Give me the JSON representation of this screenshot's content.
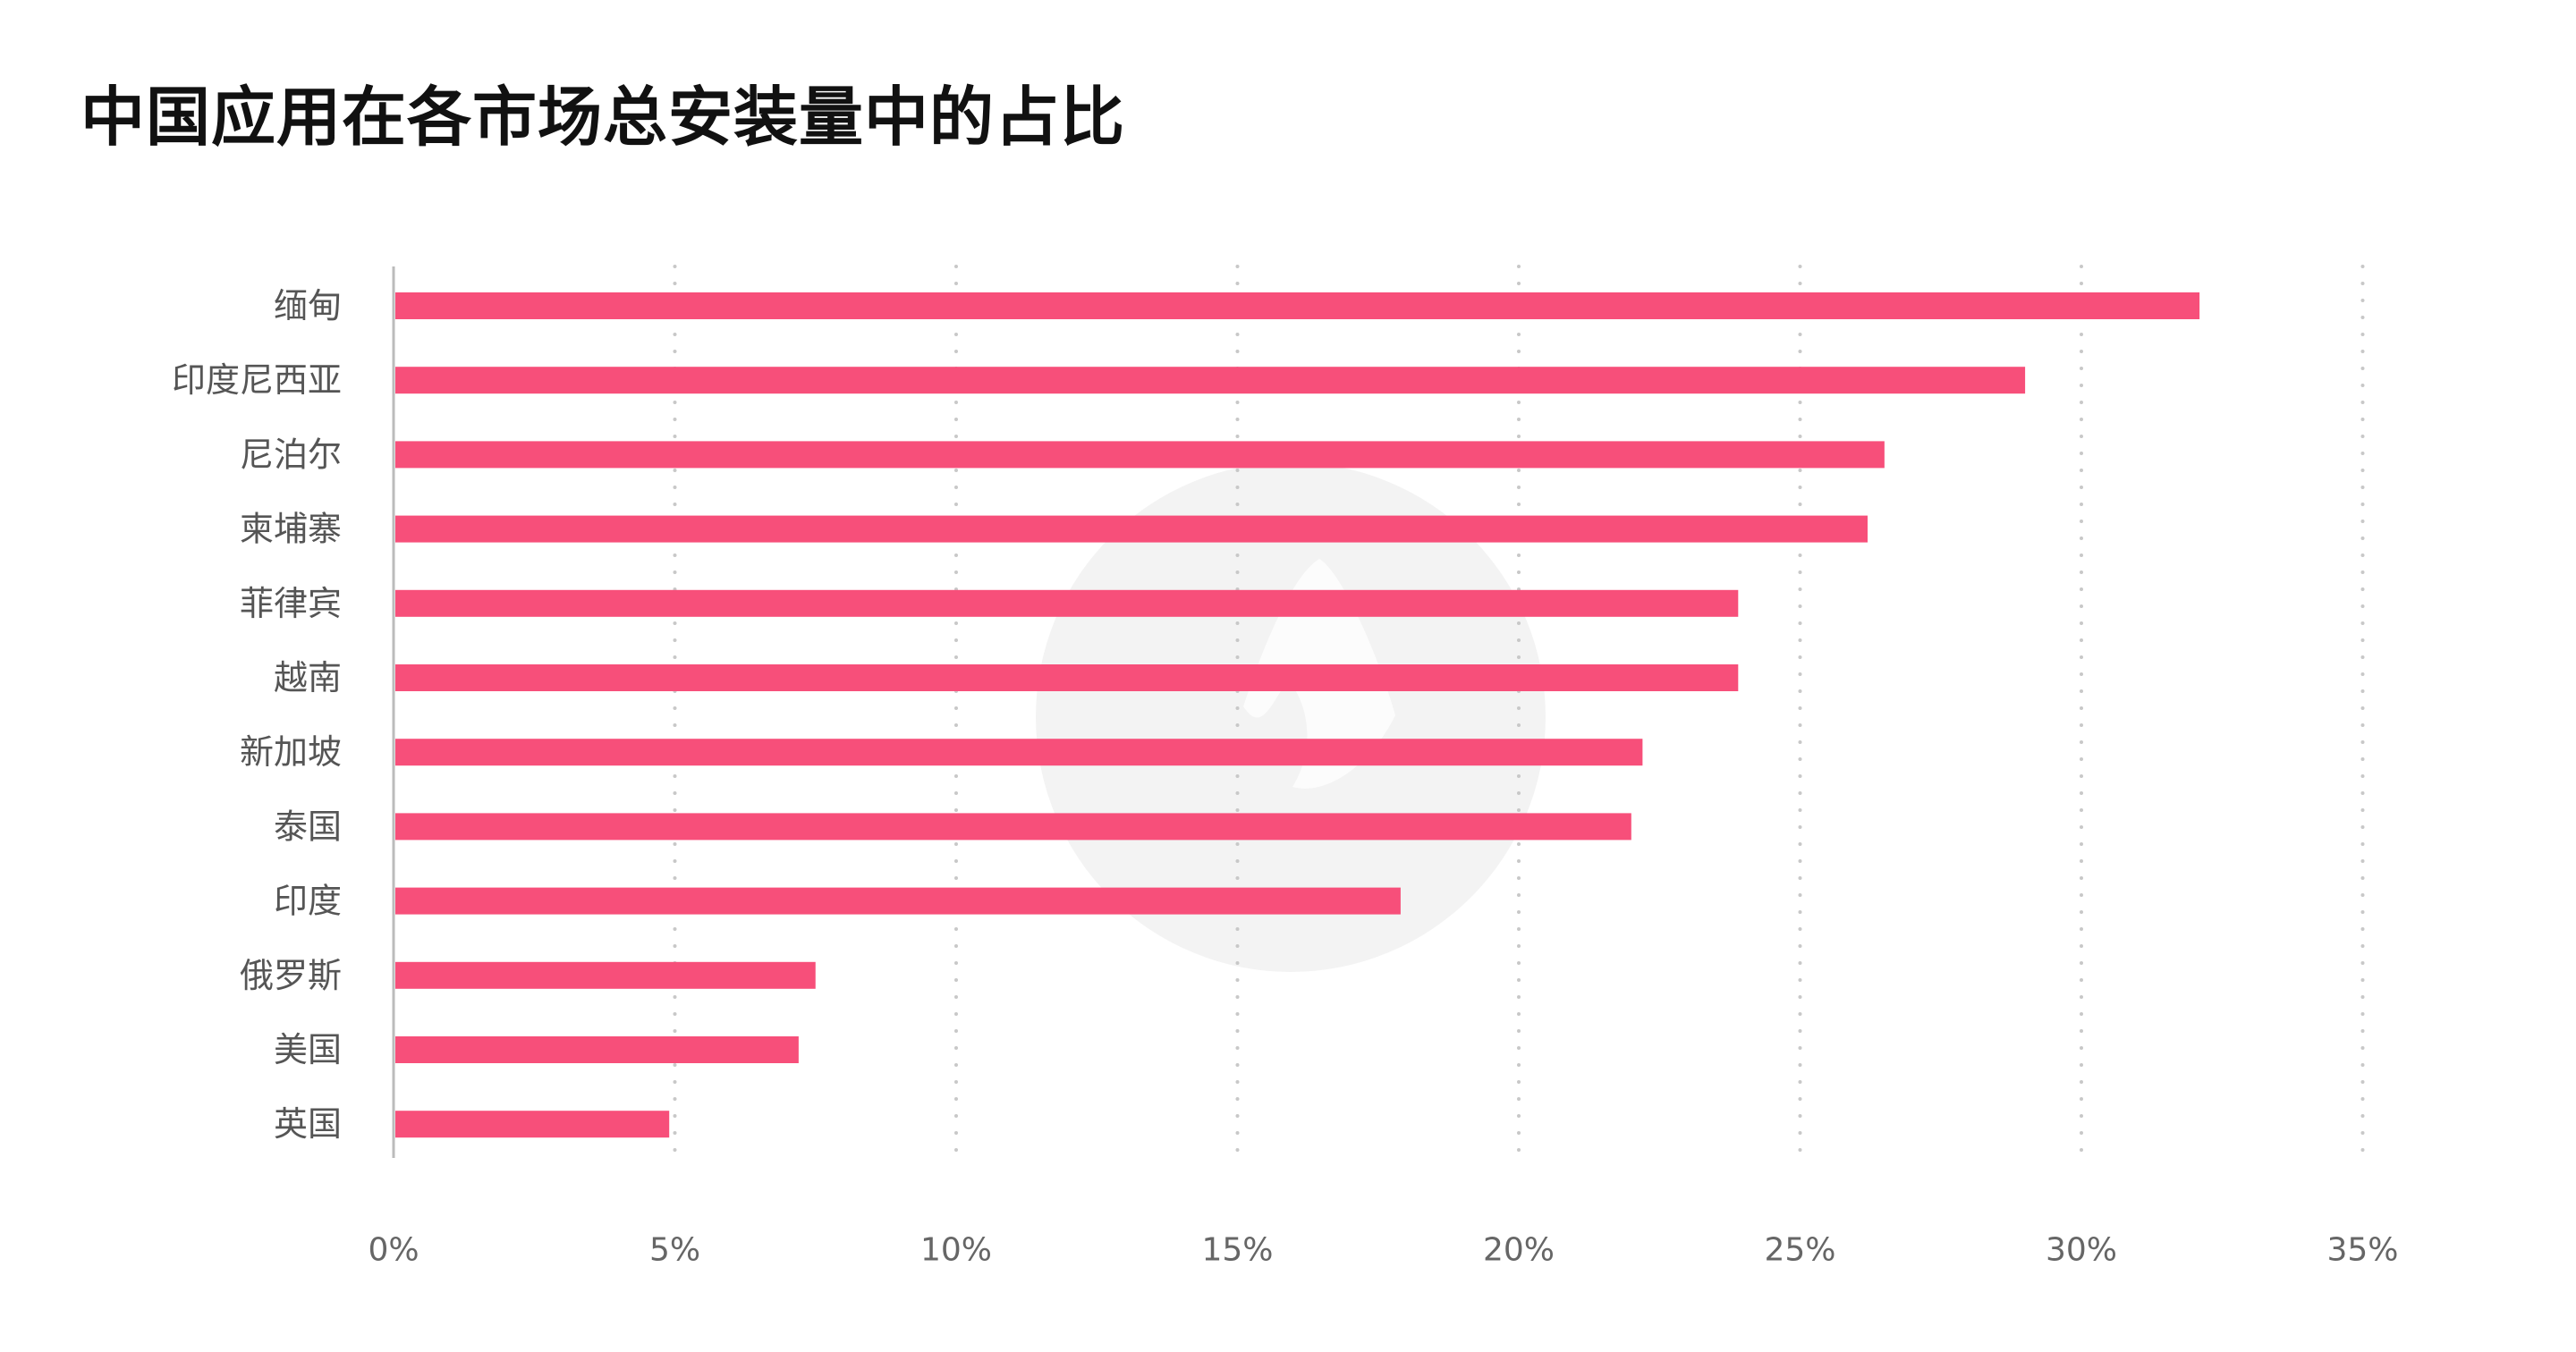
{
  "title": "中国应用在各市场总安装量中的占比",
  "chart_data": {
    "type": "bar",
    "orientation": "horizontal",
    "title": "中国应用在各市场总安装量中的占比",
    "categories": [
      "缅甸",
      "印度尼西亚",
      "尼泊尔",
      "柬埔寨",
      "菲律宾",
      "越南",
      "新加坡",
      "泰国",
      "印度",
      "俄罗斯",
      "美国",
      "英国"
    ],
    "values": [
      32.1,
      29.0,
      26.5,
      26.2,
      23.9,
      23.9,
      22.2,
      22.0,
      17.9,
      7.5,
      7.2,
      4.9
    ],
    "unit": "%",
    "xlabel": "",
    "ylabel": "",
    "xlim": [
      0,
      35
    ],
    "xticks": [
      0,
      5,
      10,
      15,
      20,
      25,
      30,
      35
    ],
    "xtick_labels": [
      "0%",
      "5%",
      "10%",
      "15%",
      "20%",
      "25%",
      "30%",
      "35%"
    ],
    "grid": "vertical dotted",
    "legend": "none",
    "bar_color": "#F74F7A",
    "grid_color": "#C8C8C8",
    "axis_color": "#BBBBBB"
  }
}
